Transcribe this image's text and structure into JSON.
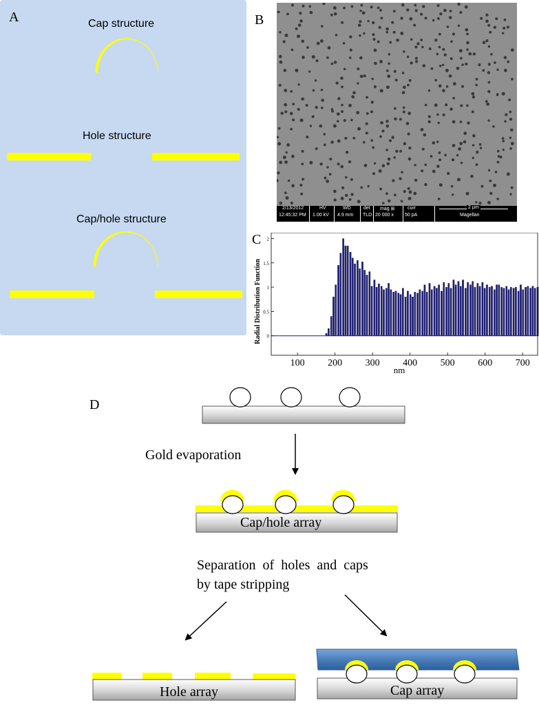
{
  "panel_a": {
    "letter": "A",
    "cap_label": "Cap structure",
    "hole_label": "Hole structure",
    "caphole_label": "Cap/hole structure"
  },
  "panel_b": {
    "letter": "B",
    "sem_info": {
      "date": "2/13/2012",
      "time": "12:45:32 PM",
      "hv_label": "HV",
      "hv_value": "1.00 kV",
      "wd_label": "WD",
      "wd_value": "4.9 mm",
      "det_label": "det",
      "det_value": "TLD",
      "mag_label": "mag ⊞",
      "mag_value": "20 000 x",
      "curr_label": "curr",
      "curr_value": "50 pA",
      "scale_label": "2 μm",
      "instrument": "Magellan"
    }
  },
  "panel_c": {
    "letter": "C"
  },
  "chart_data": {
    "type": "bar",
    "title": "",
    "xlabel": "nm",
    "ylabel": "Radial Distribution Function",
    "xlim": [
      30,
      740
    ],
    "ylim": [
      -0.4,
      2.12
    ],
    "xticks": [
      100,
      200,
      300,
      400,
      500,
      600,
      700
    ],
    "yticks": [
      0,
      0.5,
      1,
      1.5,
      2
    ],
    "ytick_labels": [
      "0",
      "0.5",
      "1",
      "1.5",
      "2"
    ],
    "reference_line": 0,
    "bin_width_nm": 6.4,
    "x": [
      177,
      183,
      190,
      196,
      202,
      209,
      215,
      222,
      228,
      234,
      241,
      247,
      253,
      260,
      266,
      273,
      279,
      285,
      292,
      298,
      305,
      311,
      317,
      324,
      330,
      337,
      343,
      349,
      356,
      362,
      369,
      375,
      381,
      388,
      394,
      401,
      407,
      413,
      420,
      426,
      433,
      439,
      445,
      452,
      458,
      465,
      471,
      477,
      484,
      490,
      497,
      503,
      509,
      516,
      522,
      529,
      535,
      541,
      548,
      554,
      561,
      567,
      573,
      580,
      586,
      593,
      599,
      605,
      612,
      618,
      625,
      631,
      637,
      644,
      650,
      657,
      663,
      669,
      676,
      682,
      689,
      695,
      701,
      708,
      714,
      721,
      727,
      733,
      740
    ],
    "values": [
      0.05,
      0.15,
      0.4,
      0.8,
      1.05,
      1.45,
      1.7,
      2.0,
      1.85,
      1.85,
      1.72,
      1.6,
      1.48,
      1.55,
      1.38,
      1.52,
      1.35,
      1.25,
      1.32,
      1.02,
      1.15,
      1.0,
      1.07,
      1.02,
      0.95,
      0.98,
      1.08,
      0.95,
      0.9,
      0.92,
      0.88,
      0.85,
      0.98,
      0.8,
      0.92,
      0.85,
      0.8,
      0.9,
      0.88,
      0.95,
      0.92,
      1.05,
      0.9,
      1.08,
      0.95,
      1.02,
      0.98,
      1.05,
      0.92,
      1.1,
      1.0,
      1.08,
      0.98,
      1.15,
      1.05,
      1.12,
      1.02,
      1.15,
      0.98,
      1.1,
      1.05,
      1.12,
      1.0,
      1.08,
      1.02,
      1.1,
      0.98,
      1.05,
      1.0,
      1.02,
      0.95,
      1.05,
      1.05,
      1.0,
      0.98,
      1.02,
      0.95,
      1.0,
      0.98,
      1.0,
      0.92,
      1.05,
      0.95,
      1.0,
      1.02,
      0.98,
      1.02,
      0.98,
      1.0
    ]
  },
  "panel_d": {
    "letter": "D",
    "step1_label": "Gold evaporation",
    "caphole_array_label": "Cap/hole array",
    "separation_line1": "Separation  of  holes  and  caps",
    "separation_line2": "by tape stripping",
    "hole_array_label": "Hole array",
    "cap_array_label": "Cap array"
  },
  "colors": {
    "gold": "#ffff00",
    "panel_a_bg": "#c6d9f1",
    "bar_fill": "#1f1f7a",
    "tape_blue": "#4a7ebb"
  }
}
